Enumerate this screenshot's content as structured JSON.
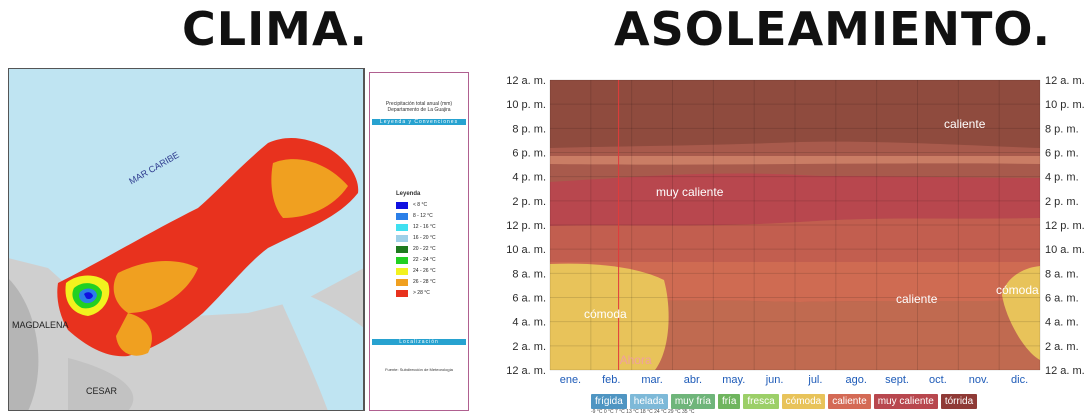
{
  "titles": {
    "left": "CLIMA.",
    "right": "ASOLEAMIENTO."
  },
  "map": {
    "sea_label": "MAR CARIBE",
    "region_labels": [
      "MAGDALENA",
      "CESAR"
    ],
    "info_title": "Precipitación total anual (mm)\nDepartamento de La Guajira",
    "legend_bar": "Leyenda y Convenciones",
    "legend_title": "Leyenda",
    "legend_items": [
      {
        "label": "< 8 °C",
        "color": "#1010e0"
      },
      {
        "label": "8 - 12 °C",
        "color": "#2b7fe8"
      },
      {
        "label": "12 - 16 °C",
        "color": "#3fe0f0"
      },
      {
        "label": "16 - 20 °C",
        "color": "#9ed0e8"
      },
      {
        "label": "20 - 22 °C",
        "color": "#1e7a1e"
      },
      {
        "label": "22 - 24 °C",
        "color": "#22d022"
      },
      {
        "label": "24 - 26 °C",
        "color": "#f2f21e"
      },
      {
        "label": "26 - 28 °C",
        "color": "#f0a020"
      },
      {
        "label": "> 28 °C",
        "color": "#e8321e"
      }
    ],
    "location_bar": "Localización",
    "source": "Fuente: Subdirección de Meteorología"
  },
  "chart_data": {
    "type": "heatmap",
    "y_ticks": [
      "12 a. m.",
      "10 p. m.",
      "8 p. m.",
      "6 p. m.",
      "4 p. m.",
      "2 p. m.",
      "12 p. m.",
      "10 a. m.",
      "8 a. m.",
      "6 a. m.",
      "4 a. m.",
      "2 a. m.",
      "12 a. m."
    ],
    "months": [
      "ene.",
      "feb.",
      "mar.",
      "abr.",
      "may.",
      "jun.",
      "jul.",
      "ago.",
      "sept.",
      "oct.",
      "nov.",
      "dic."
    ],
    "current_marker": "Ahora",
    "current_month_fraction": 0.14,
    "zone_labels": [
      "caliente",
      "muy caliente",
      "caliente",
      "cómoda",
      "cómoda"
    ],
    "categories": [
      {
        "label": "frígida",
        "color": "#4f95c2"
      },
      {
        "label": "helada",
        "color": "#7db9d8"
      },
      {
        "label": "muy fría",
        "color": "#6fb57a"
      },
      {
        "label": "fría",
        "color": "#6fb55e"
      },
      {
        "label": "fresca",
        "color": "#9ccf68"
      },
      {
        "label": "cómoda",
        "color": "#e8c35a"
      },
      {
        "label": "caliente",
        "color": "#d46a55"
      },
      {
        "label": "muy caliente",
        "color": "#b8474e"
      },
      {
        "label": "tórrida",
        "color": "#8f3a36"
      }
    ],
    "thresholds": "-9 °C    0 °C    7 °C    13 °C   18 °C   24 °C   29 °C   35 °C"
  }
}
